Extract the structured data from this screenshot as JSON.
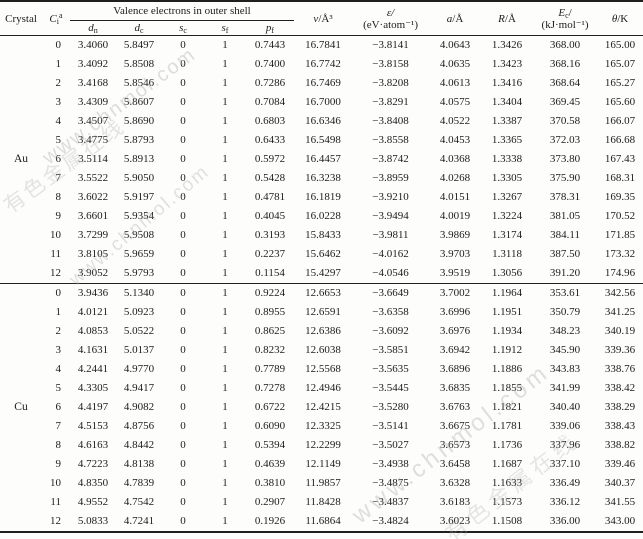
{
  "header": {
    "crystal": "Crystal",
    "ci": {
      "base": "C",
      "sub": "i",
      "sup": "a"
    },
    "valence_span": "Valence electrons in outer shell",
    "subcols": [
      {
        "base": "d",
        "sub": "n"
      },
      {
        "base": "d",
        "sub": "c"
      },
      {
        "base": "s",
        "sub": "c"
      },
      {
        "base": "s",
        "sub": "f"
      },
      {
        "base": "p",
        "sub": "f"
      }
    ],
    "volume": {
      "sym": "v",
      "rest": "/Å³"
    },
    "energy": {
      "line1": "ε/",
      "line2": "(eV·atom⁻¹)"
    },
    "lattice": {
      "sym": "a",
      "rest": "/Å"
    },
    "radius": {
      "sym": "R",
      "rest": "/Å"
    },
    "cohesive": {
      "base": "E",
      "sub": "c",
      "slash": "/",
      "line2": "(kJ·mol⁻¹)"
    },
    "theta": {
      "sym": "θ",
      "rest": "/K"
    }
  },
  "table": {
    "groups": [
      {
        "name": "Au",
        "rows": [
          [
            "0",
            "3.4060",
            "5.8497",
            "0",
            "1",
            "0.7443",
            "16.7841",
            "−3.8141",
            "4.0643",
            "1.3426",
            "368.00",
            "165.00"
          ],
          [
            "1",
            "3.4092",
            "5.8508",
            "0",
            "1",
            "0.7400",
            "16.7742",
            "−3.8158",
            "4.0635",
            "1.3423",
            "368.16",
            "165.07"
          ],
          [
            "2",
            "3.4168",
            "5.8546",
            "0",
            "1",
            "0.7286",
            "16.7469",
            "−3.8208",
            "4.0613",
            "1.3416",
            "368.64",
            "165.27"
          ],
          [
            "3",
            "3.4309",
            "5.8607",
            "0",
            "1",
            "0.7084",
            "16.7000",
            "−3.8291",
            "4.0575",
            "1.3404",
            "369.45",
            "165.60"
          ],
          [
            "4",
            "3.4507",
            "5.8690",
            "0",
            "1",
            "0.6803",
            "16.6346",
            "−3.8408",
            "4.0522",
            "1.3387",
            "370.58",
            "166.07"
          ],
          [
            "5",
            "3.4775",
            "5.8793",
            "0",
            "1",
            "0.6433",
            "16.5498",
            "−3.8558",
            "4.0453",
            "1.3365",
            "372.03",
            "166.68"
          ],
          [
            "6",
            "3.5114",
            "5.8913",
            "0",
            "1",
            "0.5972",
            "16.4457",
            "−3.8742",
            "4.0368",
            "1.3338",
            "373.80",
            "167.43"
          ],
          [
            "7",
            "3.5522",
            "5.9050",
            "0",
            "1",
            "0.5428",
            "16.3238",
            "−3.8959",
            "4.0268",
            "1.3305",
            "375.90",
            "168.31"
          ],
          [
            "8",
            "3.6022",
            "5.9197",
            "0",
            "1",
            "0.4781",
            "16.1819",
            "−3.9210",
            "4.0151",
            "1.3267",
            "378.31",
            "169.35"
          ],
          [
            "9",
            "3.6601",
            "5.9354",
            "0",
            "1",
            "0.4045",
            "16.0228",
            "−3.9494",
            "4.0019",
            "1.3224",
            "381.05",
            "170.52"
          ],
          [
            "10",
            "3.7299",
            "5.9508",
            "0",
            "1",
            "0.3193",
            "15.8433",
            "−3.9811",
            "3.9869",
            "1.3174",
            "384.11",
            "171.85"
          ],
          [
            "11",
            "3.8105",
            "5.9659",
            "0",
            "1",
            "0.2237",
            "15.6462",
            "−4.0162",
            "3.9703",
            "1.3118",
            "387.50",
            "173.32"
          ],
          [
            "12",
            "3.9052",
            "5.9793",
            "0",
            "1",
            "0.1154",
            "15.4297",
            "−4.0546",
            "3.9519",
            "1.3056",
            "391.20",
            "174.96"
          ]
        ]
      },
      {
        "name": "Cu",
        "rows": [
          [
            "0",
            "3.9436",
            "5.1340",
            "0",
            "1",
            "0.9224",
            "12.6653",
            "−3.6649",
            "3.7002",
            "1.1964",
            "353.61",
            "342.56"
          ],
          [
            "1",
            "4.0121",
            "5.0923",
            "0",
            "1",
            "0.8955",
            "12.6591",
            "−3.6358",
            "3.6996",
            "1.1951",
            "350.79",
            "341.25"
          ],
          [
            "2",
            "4.0853",
            "5.0522",
            "0",
            "1",
            "0.8625",
            "12.6386",
            "−3.6092",
            "3.6976",
            "1.1934",
            "348.23",
            "340.19"
          ],
          [
            "3",
            "4.1631",
            "5.0137",
            "0",
            "1",
            "0.8232",
            "12.6038",
            "−3.5851",
            "3.6942",
            "1.1912",
            "345.90",
            "339.36"
          ],
          [
            "4",
            "4.2441",
            "4.9770",
            "0",
            "1",
            "0.7789",
            "12.5568",
            "−3.5635",
            "3.6896",
            "1.1886",
            "343.83",
            "338.76"
          ],
          [
            "5",
            "4.3305",
            "4.9417",
            "0",
            "1",
            "0.7278",
            "12.4946",
            "−3.5445",
            "3.6835",
            "1.1855",
            "341.99",
            "338.42"
          ],
          [
            "6",
            "4.4197",
            "4.9082",
            "0",
            "1",
            "0.6722",
            "12.4215",
            "−3.5280",
            "3.6763",
            "1.1821",
            "340.40",
            "338.29"
          ],
          [
            "7",
            "4.5153",
            "4.8756",
            "0",
            "1",
            "0.6090",
            "12.3325",
            "−3.5141",
            "3.6675",
            "1.1781",
            "339.06",
            "338.43"
          ],
          [
            "8",
            "4.6163",
            "4.8442",
            "0",
            "1",
            "0.5394",
            "12.2299",
            "−3.5027",
            "3.6573",
            "1.1736",
            "337.96",
            "338.82"
          ],
          [
            "9",
            "4.7223",
            "4.8138",
            "0",
            "1",
            "0.4639",
            "12.1149",
            "−3.4938",
            "3.6458",
            "1.1687",
            "337.10",
            "339.46"
          ],
          [
            "10",
            "4.8350",
            "4.7839",
            "0",
            "1",
            "0.3810",
            "11.9857",
            "−3.4875",
            "3.6328",
            "1.1633",
            "336.49",
            "340.37"
          ],
          [
            "11",
            "4.9552",
            "4.7542",
            "0",
            "1",
            "0.2907",
            "11.8428",
            "−3.4837",
            "3.6183",
            "1.1573",
            "336.12",
            "341.55"
          ],
          [
            "12",
            "5.0833",
            "4.7241",
            "0",
            "1",
            "0.1926",
            "11.6864",
            "−3.4824",
            "3.6023",
            "1.1508",
            "336.00",
            "343.00"
          ]
        ]
      }
    ]
  },
  "watermark": {
    "site": "www.chnmol.com",
    "brand": "有色金属在线"
  }
}
